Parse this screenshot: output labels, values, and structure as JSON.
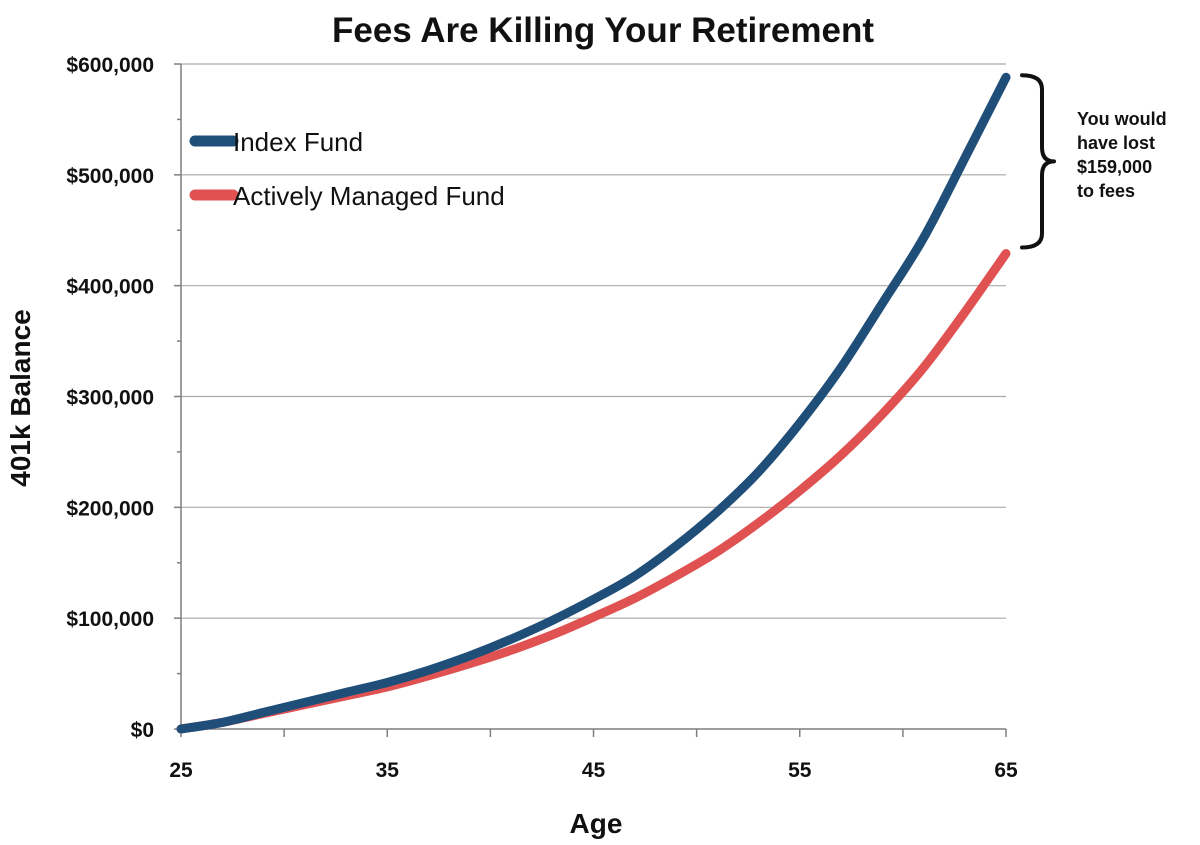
{
  "chart_data": {
    "type": "line",
    "title": "Fees Are Killing Your Retirement",
    "xlabel": "Age",
    "ylabel": "401k Balance",
    "xlim": [
      25,
      65
    ],
    "ylim": [
      0,
      600000
    ],
    "x_ticks": [
      25,
      35,
      45,
      55,
      65
    ],
    "x_tick_labels": [
      "25",
      "35",
      "45",
      "55",
      "65"
    ],
    "y_ticks": [
      0,
      100000,
      200000,
      300000,
      400000,
      500000,
      600000
    ],
    "y_tick_labels": [
      "$0",
      "$100,000",
      "$200,000",
      "$300,000",
      "$400,000",
      "$500,000",
      "$600,000"
    ],
    "grid": "horizontal",
    "legend_position": "top-left",
    "x": [
      25,
      27,
      29,
      31,
      33,
      35,
      37,
      39,
      41,
      43,
      45,
      47,
      49,
      51,
      53,
      55,
      57,
      59,
      61,
      63,
      65
    ],
    "series": [
      {
        "name": "Index Fund",
        "color": "#1f4e79",
        "values": [
          0,
          6000,
          15000,
          24000,
          33000,
          42000,
          53000,
          66000,
          81000,
          98000,
          117000,
          138000,
          165000,
          196000,
          232000,
          276000,
          326000,
          384000,
          443000,
          515000,
          588000
        ]
      },
      {
        "name": "Actively Managed Fund",
        "color": "#e05252",
        "values": [
          0,
          6000,
          14000,
          22000,
          30000,
          38000,
          48000,
          59000,
          71000,
          85000,
          101000,
          118000,
          138000,
          160000,
          186000,
          215000,
          247000,
          284000,
          326000,
          376000,
          429000
        ]
      }
    ],
    "annotation": {
      "lines": [
        "You would",
        "have lost",
        "$159,000",
        "to fees"
      ]
    }
  }
}
